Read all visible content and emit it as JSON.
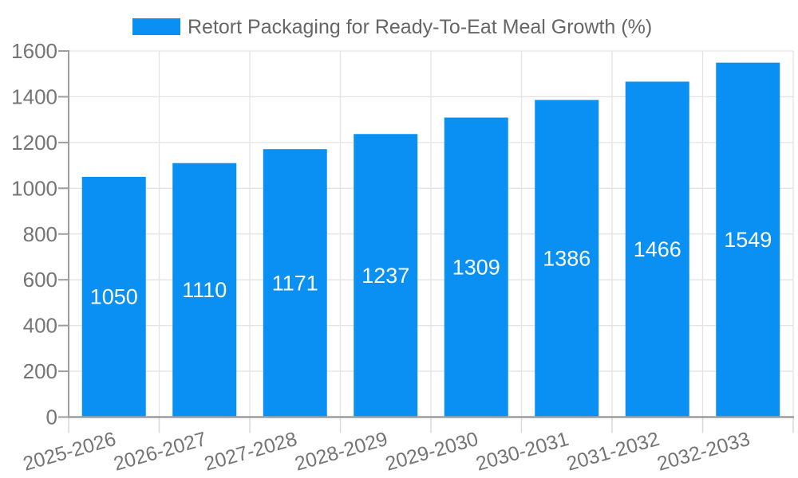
{
  "legend": {
    "label": "Retort Packaging for Ready-To-Eat Meal Growth (%)"
  },
  "chart_data": {
    "type": "bar",
    "title": "Retort Packaging for Ready-To-Eat Meal Growth (%)",
    "categories": [
      "2025-2026",
      "2026-2027",
      "2027-2028",
      "2028-2029",
      "2029-2030",
      "2030-2031",
      "2031-2032",
      "2032-2033"
    ],
    "values": [
      1050,
      1110,
      1171,
      1237,
      1309,
      1386,
      1466,
      1549
    ],
    "xlabel": "",
    "ylabel": "",
    "ylim": [
      0,
      1600
    ],
    "yticks": [
      0,
      200,
      400,
      600,
      800,
      1000,
      1200,
      1400,
      1600
    ],
    "grid": true,
    "legend_position": "top",
    "value_label_position": "inside-middle"
  },
  "colors": {
    "bar": "#0a90f3",
    "background": "#ffffff",
    "grid": "#e3e3e3",
    "axis": "#9e9e9e",
    "x_tick": "#d9d9d9",
    "tick_label": "#757575",
    "legend_text": "#666666",
    "bar_label": "#ffffff"
  }
}
